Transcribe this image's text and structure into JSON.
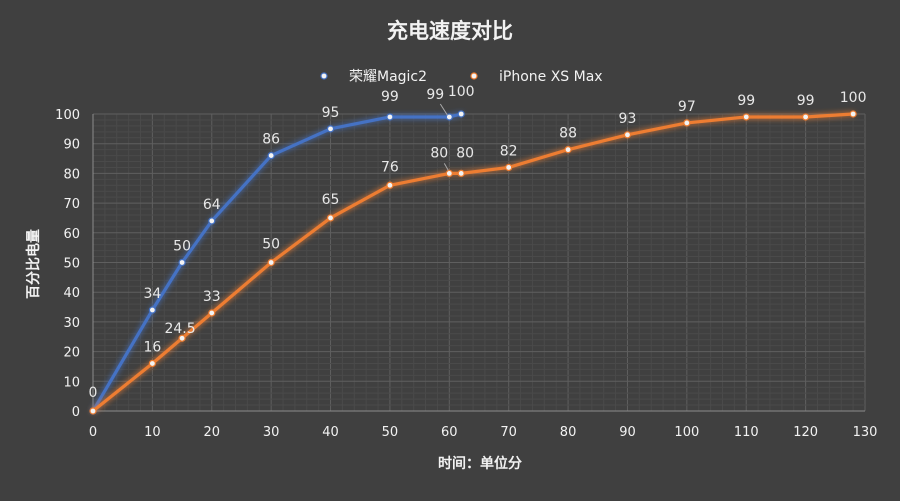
{
  "chart_data": {
    "type": "line",
    "title": "充电速度对比",
    "xlabel": "时间：单位分",
    "ylabel": "百分比电量",
    "xlim": [
      0,
      130
    ],
    "ylim": [
      0,
      100
    ],
    "x_ticks": [
      0,
      10,
      20,
      30,
      40,
      50,
      60,
      70,
      80,
      90,
      100,
      110,
      120,
      130
    ],
    "y_ticks": [
      0,
      10,
      20,
      30,
      40,
      50,
      60,
      70,
      80,
      90,
      100
    ],
    "grid": true,
    "legend_position": "top-center",
    "series": [
      {
        "name": "荣耀Magic2",
        "color": "#4472c4",
        "points": [
          {
            "x": 0,
            "y": 0
          },
          {
            "x": 10,
            "y": 34
          },
          {
            "x": 15,
            "y": 50
          },
          {
            "x": 20,
            "y": 64
          },
          {
            "x": 30,
            "y": 86
          },
          {
            "x": 40,
            "y": 95
          },
          {
            "x": 50,
            "y": 99
          },
          {
            "x": 60,
            "y": 99
          },
          {
            "x": 62,
            "y": 100
          }
        ]
      },
      {
        "name": "iPhone XS Max",
        "color": "#ed7d31",
        "points": [
          {
            "x": 0,
            "y": 0
          },
          {
            "x": 10,
            "y": 16
          },
          {
            "x": 15,
            "y": 24.5
          },
          {
            "x": 20,
            "y": 33
          },
          {
            "x": 30,
            "y": 50
          },
          {
            "x": 40,
            "y": 65
          },
          {
            "x": 50,
            "y": 76
          },
          {
            "x": 60,
            "y": 80
          },
          {
            "x": 62,
            "y": 80
          },
          {
            "x": 70,
            "y": 82
          },
          {
            "x": 80,
            "y": 88
          },
          {
            "x": 90,
            "y": 93
          },
          {
            "x": 100,
            "y": 97
          },
          {
            "x": 110,
            "y": 99
          },
          {
            "x": 120,
            "y": 99
          },
          {
            "x": 128,
            "y": 100
          }
        ]
      }
    ],
    "data_labels": [
      {
        "series": 0,
        "text": "0",
        "x": 0,
        "y": 0
      },
      {
        "series": 0,
        "text": "34",
        "x": 10,
        "y": 34
      },
      {
        "series": 0,
        "text": "50",
        "x": 15,
        "y": 50
      },
      {
        "series": 0,
        "text": "64",
        "x": 20,
        "y": 64
      },
      {
        "series": 0,
        "text": "86",
        "x": 30,
        "y": 86
      },
      {
        "series": 0,
        "text": "95",
        "x": 40,
        "y": 95
      },
      {
        "series": 0,
        "text": "99",
        "x": 50,
        "y": 99
      },
      {
        "series": 0,
        "text": "99",
        "x": 60,
        "y": 99
      },
      {
        "series": 0,
        "text": "100",
        "x": 62,
        "y": 100
      },
      {
        "series": 1,
        "text": "16",
        "x": 10,
        "y": 16
      },
      {
        "series": 1,
        "text": "24.5",
        "x": 15,
        "y": 24.5
      },
      {
        "series": 1,
        "text": "33",
        "x": 20,
        "y": 33
      },
      {
        "series": 1,
        "text": "50",
        "x": 30,
        "y": 50
      },
      {
        "series": 1,
        "text": "65",
        "x": 40,
        "y": 65
      },
      {
        "series": 1,
        "text": "76",
        "x": 50,
        "y": 76
      },
      {
        "series": 1,
        "text": "80",
        "x": 60,
        "y": 80
      },
      {
        "series": 1,
        "text": "80",
        "x": 62,
        "y": 80
      },
      {
        "series": 1,
        "text": "82",
        "x": 70,
        "y": 82
      },
      {
        "series": 1,
        "text": "88",
        "x": 80,
        "y": 88
      },
      {
        "series": 1,
        "text": "93",
        "x": 90,
        "y": 93
      },
      {
        "series": 1,
        "text": "97",
        "x": 100,
        "y": 97
      },
      {
        "series": 1,
        "text": "99",
        "x": 110,
        "y": 99
      },
      {
        "series": 1,
        "text": "99",
        "x": 120,
        "y": 99
      },
      {
        "series": 1,
        "text": "100",
        "x": 128,
        "y": 100
      }
    ]
  }
}
